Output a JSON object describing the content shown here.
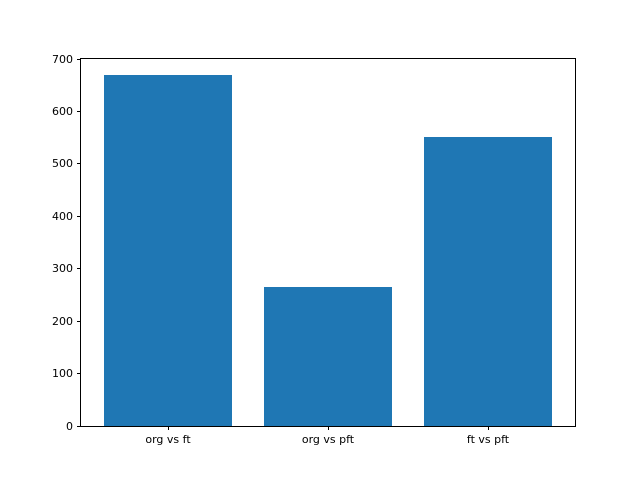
{
  "figure": {
    "background": "#ffffff",
    "bar_color": "#1f77b4",
    "axis_color": "#000000",
    "text_color": "#000000"
  },
  "chart_data": {
    "type": "bar",
    "categories": [
      "org vs ft",
      "org vs pft",
      "ft vs pft"
    ],
    "values": [
      670,
      265,
      552
    ],
    "title": "",
    "xlabel": "",
    "ylabel": "",
    "ylim": [
      0,
      700
    ],
    "yticks": [
      0,
      100,
      200,
      300,
      400,
      500,
      600,
      700
    ],
    "grid": false,
    "legend": null
  }
}
